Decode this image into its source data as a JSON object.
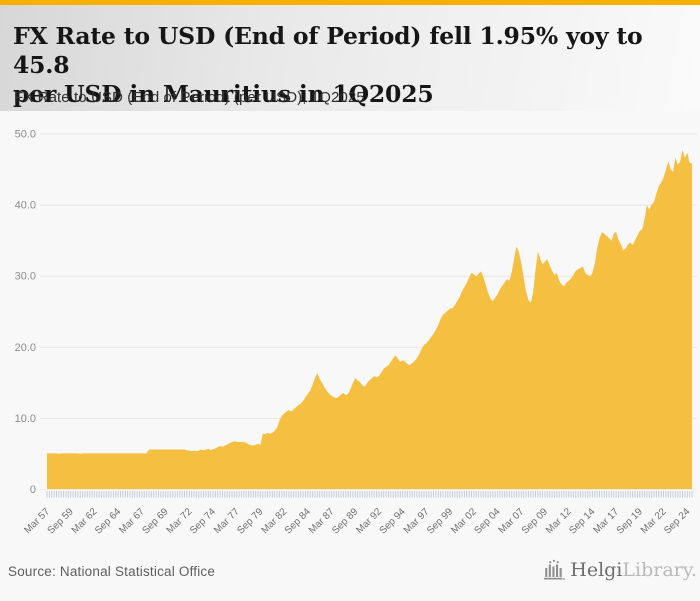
{
  "header": {
    "title_line1": "FX Rate to USD (End of Period) fell 1.95% yoy to 45.8",
    "title_line2": "per USD in Mauritius in 1Q2025",
    "subtitle": "FX Rate to USD (End of Period) (per USD), 1Q2025"
  },
  "chart_data": {
    "type": "area",
    "title": "FX Rate to USD (End of Period) (per USD), 1Q2025",
    "series_name": "FX Rate to USD (End of Period)",
    "country": "Mauritius",
    "period": "1Q2025",
    "latest_value": 45.8,
    "yoy_change_pct": -1.95,
    "unit": "per USD",
    "x_frequency": "quarterly",
    "ylim": [
      0,
      50
    ],
    "yticks": [
      0,
      10,
      20,
      30,
      40,
      50
    ],
    "ytick_labels": [
      "0",
      "10.0",
      "20.0",
      "30.0",
      "40.0",
      "50.0"
    ],
    "xtick_every": 10,
    "xtick_labels": [
      "Mar 57",
      "Sep 59",
      "Mar 62",
      "Sep 64",
      "Mar 67",
      "Sep 69",
      "Mar 72",
      "Sep 74",
      "Mar 77",
      "Sep 79",
      "Mar 82",
      "Sep 84",
      "Mar 87",
      "Sep 89",
      "Mar 92",
      "Sep 94",
      "Mar 97",
      "Sep 99",
      "Mar 02",
      "Sep 04",
      "Mar 07",
      "Sep 09",
      "Mar 12",
      "Sep 14",
      "Mar 17",
      "Sep 19",
      "Mar 22",
      "Sep 24"
    ],
    "grid_on": true,
    "legend": "none",
    "fill_color": "#f5bf42",
    "grid_color": "#e5e5e5",
    "axis_tick_color": "#c2cbdf",
    "ytick_label_color": "#8c8c8c",
    "xtick_label_color": "#6f6f6f",
    "values": [
      5.0,
      5.0,
      5.0,
      5.0,
      5.0,
      4.95,
      5.0,
      5.0,
      5.0,
      5.0,
      5.0,
      5.0,
      5.0,
      5.0,
      4.95,
      5.0,
      5.0,
      5.0,
      5.0,
      5.0,
      5.0,
      5.0,
      5.0,
      5.0,
      5.0,
      5.0,
      5.0,
      5.0,
      5.0,
      5.0,
      5.0,
      5.0,
      5.0,
      5.0,
      5.0,
      5.0,
      5.0,
      5.0,
      5.0,
      5.0,
      5.0,
      5.0,
      5.0,
      5.55,
      5.55,
      5.55,
      5.55,
      5.55,
      5.55,
      5.55,
      5.55,
      5.55,
      5.55,
      5.55,
      5.55,
      5.55,
      5.55,
      5.55,
      5.55,
      5.45,
      5.4,
      5.35,
      5.4,
      5.35,
      5.4,
      5.55,
      5.45,
      5.55,
      5.65,
      5.5,
      5.6,
      5.7,
      5.9,
      6.05,
      5.95,
      6.1,
      6.25,
      6.45,
      6.6,
      6.7,
      6.65,
      6.6,
      6.65,
      6.6,
      6.5,
      6.3,
      6.15,
      6.1,
      6.25,
      6.35,
      6.2,
      7.8,
      7.7,
      7.9,
      7.75,
      7.9,
      8.2,
      8.6,
      9.6,
      10.3,
      10.6,
      10.9,
      11.1,
      10.9,
      11.2,
      11.5,
      11.8,
      12.0,
      12.4,
      12.9,
      13.4,
      13.8,
      14.7,
      15.6,
      16.3,
      15.5,
      14.9,
      14.3,
      13.8,
      13.4,
      13.1,
      12.9,
      12.8,
      13.0,
      13.3,
      13.5,
      13.2,
      13.4,
      14.1,
      14.9,
      15.6,
      15.3,
      15.0,
      14.6,
      14.4,
      14.9,
      15.3,
      15.6,
      15.9,
      15.7,
      15.9,
      16.4,
      16.9,
      17.2,
      17.4,
      17.9,
      18.4,
      18.8,
      18.3,
      17.9,
      18.1,
      17.9,
      17.6,
      17.4,
      17.7,
      18.0,
      18.4,
      19.0,
      19.7,
      20.3,
      20.5,
      20.9,
      21.4,
      21.8,
      22.4,
      23.1,
      23.9,
      24.5,
      24.8,
      25.1,
      25.4,
      25.4,
      25.9,
      26.4,
      27.0,
      27.8,
      28.4,
      29.0,
      29.7,
      30.4,
      30.2,
      29.9,
      30.3,
      30.6,
      29.8,
      28.8,
      27.6,
      26.8,
      26.4,
      26.9,
      27.4,
      28.1,
      28.6,
      29.1,
      29.5,
      29.3,
      30.5,
      32.5,
      34.1,
      33.3,
      31.8,
      29.8,
      27.8,
      26.6,
      26.2,
      27.6,
      30.8,
      33.4,
      32.4,
      31.6,
      32.0,
      32.3,
      31.4,
      30.7,
      30.1,
      30.4,
      29.3,
      28.8,
      28.5,
      29.0,
      29.3,
      29.6,
      30.1,
      30.7,
      30.9,
      31.1,
      31.3,
      30.4,
      30.1,
      29.9,
      30.4,
      31.7,
      33.8,
      35.3,
      36.1,
      35.9,
      35.6,
      35.3,
      34.9,
      35.9,
      36.2,
      35.0,
      34.4,
      33.6,
      33.8,
      34.4,
      34.7,
      34.3,
      35.0,
      35.7,
      36.3,
      36.5,
      38.0,
      39.9,
      39.3,
      40.0,
      40.4,
      41.5,
      42.6,
      43.1,
      43.8,
      44.9,
      46.1,
      45.0,
      44.6,
      46.6,
      45.6,
      46.0,
      47.7,
      46.6,
      47.3,
      45.9,
      45.8
    ]
  },
  "footer": {
    "source": "Source: National Statistical Office",
    "logo": {
      "primary": "Helgi",
      "secondary": "Library."
    }
  },
  "colors": {
    "accent_bar": "#f5b000",
    "page_background": "#f8f8f8"
  }
}
